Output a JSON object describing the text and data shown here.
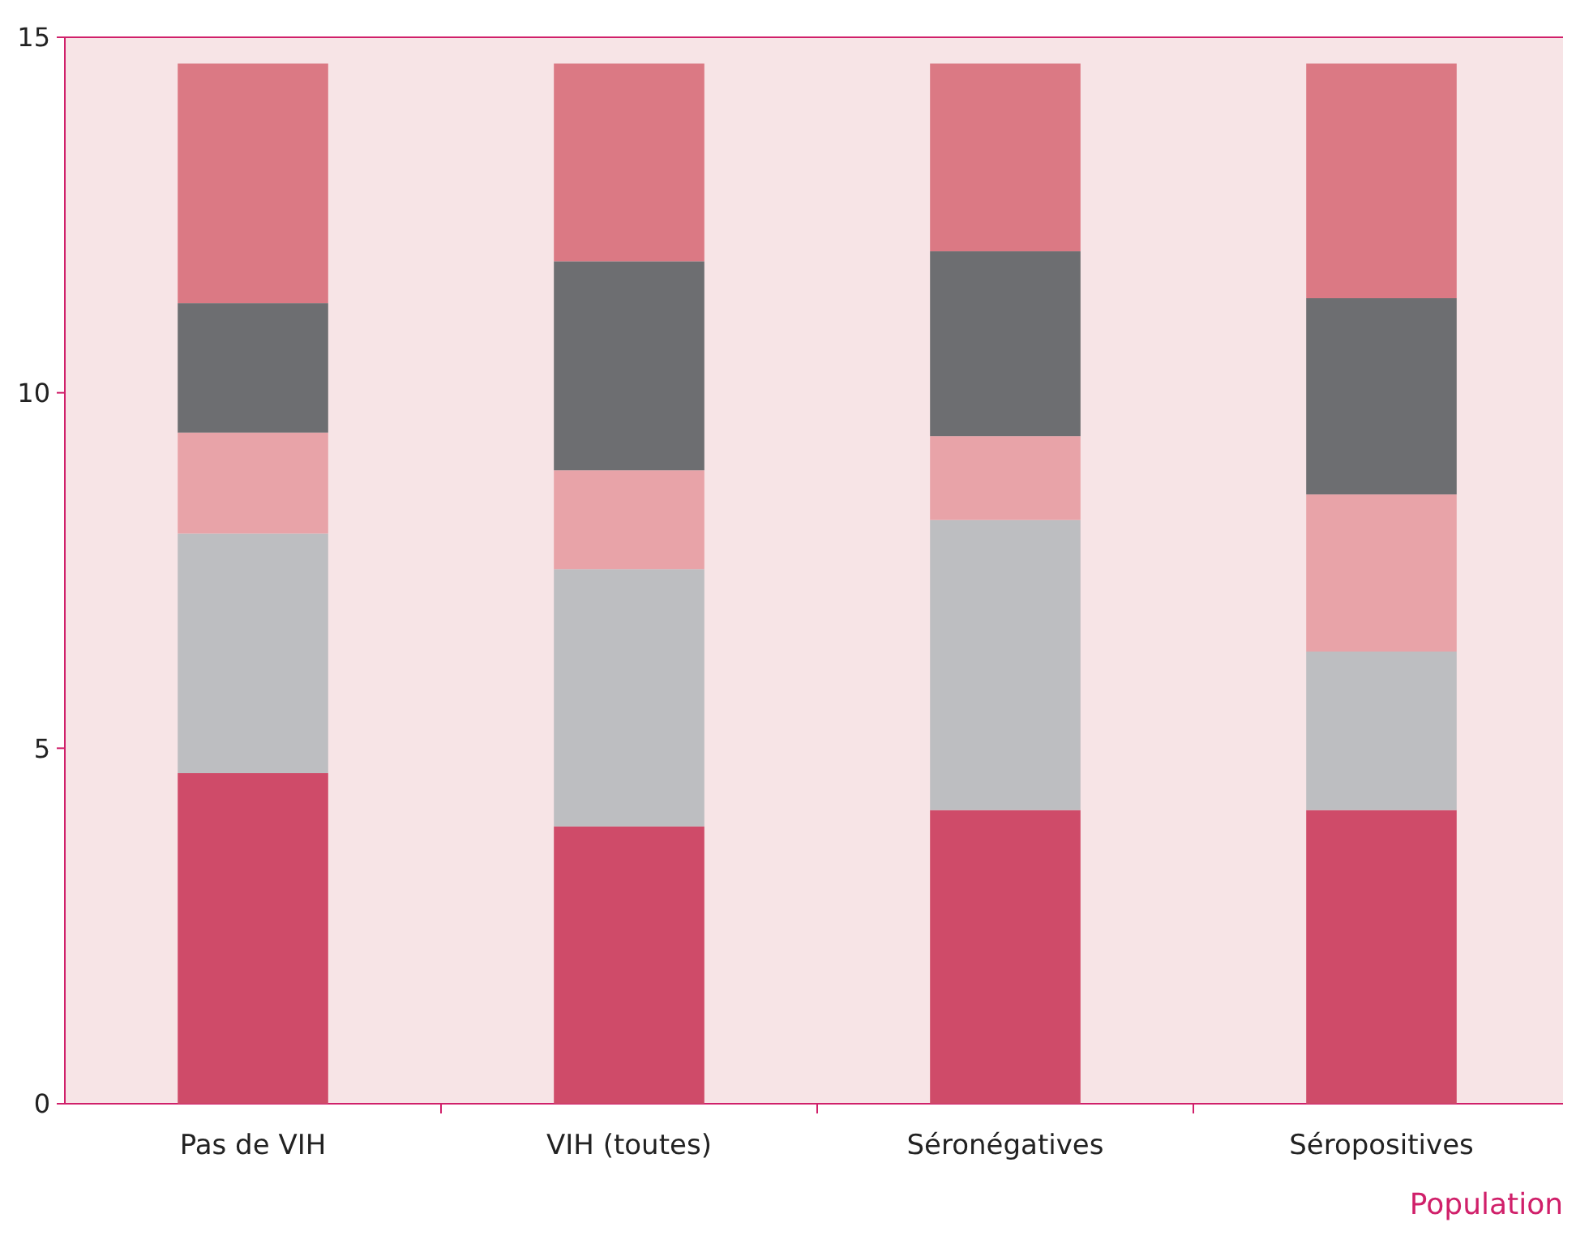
{
  "chart_data": {
    "type": "bar",
    "stacked": true,
    "xlabel": "Population",
    "categories": [
      "Pas de VIH",
      "VIH (toutes)",
      "Séronégatives",
      "Séropositives"
    ],
    "series": [
      {
        "color": "#cf4b69",
        "values": [
          4.65,
          3.9,
          4.13,
          4.13
        ]
      },
      {
        "color": "#bdbec1",
        "values": [
          3.37,
          3.62,
          4.08,
          2.23
        ]
      },
      {
        "color": "#e8a3a8",
        "values": [
          1.42,
          1.39,
          1.18,
          2.21
        ]
      },
      {
        "color": "#6d6e71",
        "values": [
          1.82,
          2.94,
          2.6,
          2.76
        ]
      },
      {
        "color": "#db7984",
        "values": [
          3.37,
          2.78,
          2.64,
          3.3
        ]
      }
    ],
    "ylim": [
      0,
      15
    ],
    "yticks": [
      0,
      5,
      10,
      15
    ],
    "grid": false
  }
}
